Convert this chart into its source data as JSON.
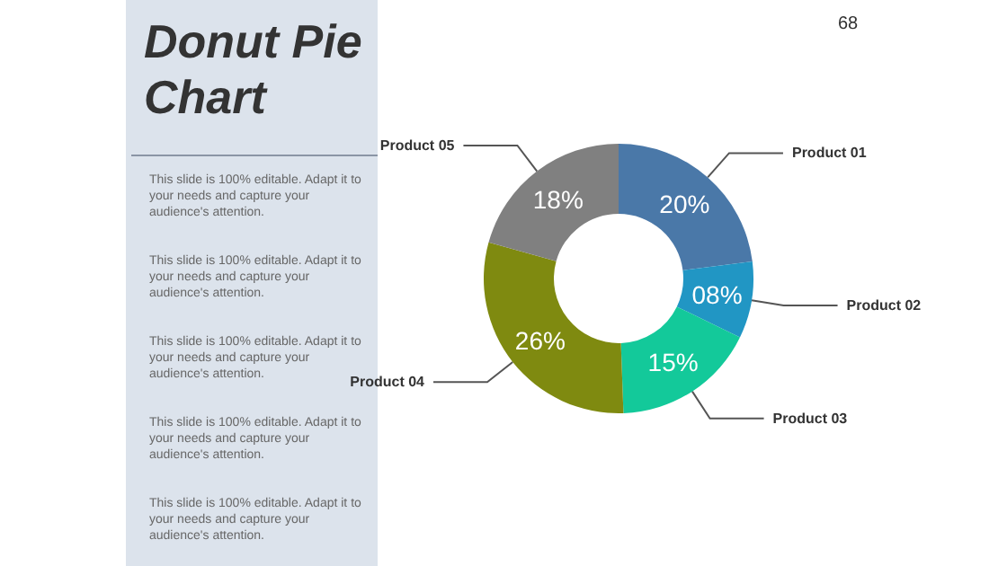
{
  "chart_data": {
    "type": "donut",
    "title": "Donut Pie Chart",
    "categories": [
      "Product 01",
      "Product 02",
      "Product 03",
      "Product 04",
      "Product 05"
    ],
    "values": [
      20,
      8,
      15,
      26,
      18
    ],
    "value_labels": [
      "20%",
      "08%",
      "15%",
      "26%",
      "18%"
    ],
    "colors": [
      "#4a78a8",
      "#2196c4",
      "#13c99a",
      "#7f8a10",
      "#808080"
    ],
    "legend": false,
    "annotations": [
      "68",
      "This slide is 100% editable. Adapt it to your needs and capture your audience's attention.",
      "This slide is 100% editable. Adapt it to your needs and capture your audience's attention.",
      "This slide is 100% editable. Adapt it to your needs and capture your audience's attention.",
      "This slide is 100% editable. Adapt it to your needs and capture your audience's attention.",
      "This slide is 100% editable. Adapt it to your needs and capture your audience's attention."
    ]
  }
}
